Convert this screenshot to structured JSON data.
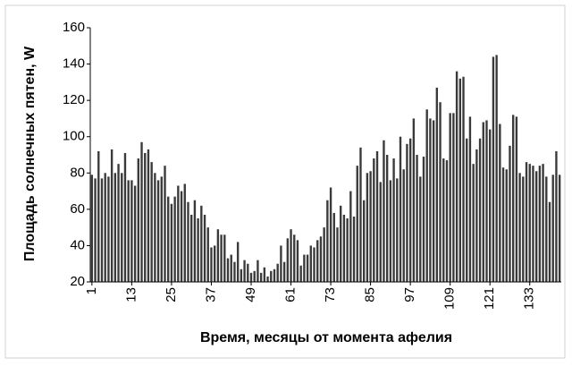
{
  "chart_data": {
    "type": "bar",
    "x_label": "Время, месяцы от момента афелия",
    "y_label": "Площадь солнечных пятен, W",
    "color": "#3a3a3a",
    "x": [
      1,
      2,
      3,
      4,
      5,
      6,
      7,
      8,
      9,
      10,
      11,
      12,
      13,
      14,
      15,
      16,
      17,
      18,
      19,
      20,
      21,
      22,
      23,
      24,
      25,
      26,
      27,
      28,
      29,
      30,
      31,
      32,
      33,
      34,
      35,
      36,
      37,
      38,
      39,
      40,
      41,
      42,
      43,
      44,
      45,
      46,
      47,
      48,
      49,
      50,
      51,
      52,
      53,
      54,
      55,
      56,
      57,
      58,
      59,
      60,
      61,
      62,
      63,
      64,
      65,
      66,
      67,
      68,
      69,
      70,
      71,
      72,
      73,
      74,
      75,
      76,
      77,
      78,
      79,
      80,
      81,
      82,
      83,
      84,
      85,
      86,
      87,
      88,
      89,
      90,
      91,
      92,
      93,
      94,
      95,
      96,
      97,
      98,
      99,
      100,
      101,
      102,
      103,
      104,
      105,
      106,
      107,
      108,
      109,
      110,
      111,
      112,
      113,
      114,
      115,
      116,
      117,
      118,
      119,
      120,
      121,
      122,
      123,
      124,
      125,
      126,
      127,
      128,
      129,
      130,
      131,
      132,
      133,
      134,
      135,
      136,
      137,
      138,
      139,
      140,
      141,
      142
    ],
    "values": [
      79,
      77,
      92,
      77,
      80,
      78,
      93,
      80,
      85,
      80,
      91,
      76,
      76,
      73,
      88,
      97,
      91,
      93,
      86,
      80,
      76,
      78,
      84,
      67,
      63,
      67,
      73,
      70,
      74,
      64,
      57,
      65,
      55,
      62,
      57,
      50,
      39,
      40,
      49,
      46,
      46,
      33,
      35,
      31,
      42,
      27,
      32,
      30,
      25,
      26,
      32,
      25,
      28,
      23,
      26,
      27,
      30,
      40,
      31,
      44,
      49,
      46,
      43,
      29,
      35,
      35,
      40,
      39,
      43,
      45,
      50,
      65,
      72,
      58,
      50,
      62,
      57,
      55,
      70,
      56,
      84,
      94,
      65,
      80,
      81,
      88,
      92,
      75,
      98,
      90,
      76,
      88,
      77,
      100,
      82,
      96,
      99,
      110,
      90,
      78,
      89,
      115,
      110,
      109,
      127,
      119,
      88,
      87,
      113,
      113,
      136,
      132,
      133,
      99,
      111,
      85,
      93,
      99,
      108,
      109,
      104,
      144,
      145,
      107,
      83,
      82,
      95,
      112,
      111,
      80,
      78,
      86,
      85,
      84,
      81,
      84,
      85,
      78,
      64,
      79,
      92,
      79
    ],
    "xlim": [
      0.5,
      142.5
    ],
    "xticks": [
      1,
      13,
      25,
      37,
      49,
      61,
      73,
      85,
      97,
      109,
      121,
      133
    ],
    "ylim": [
      20,
      160
    ],
    "yticks": [
      20,
      40,
      60,
      80,
      100,
      120,
      140,
      160
    ],
    "grid": false
  }
}
